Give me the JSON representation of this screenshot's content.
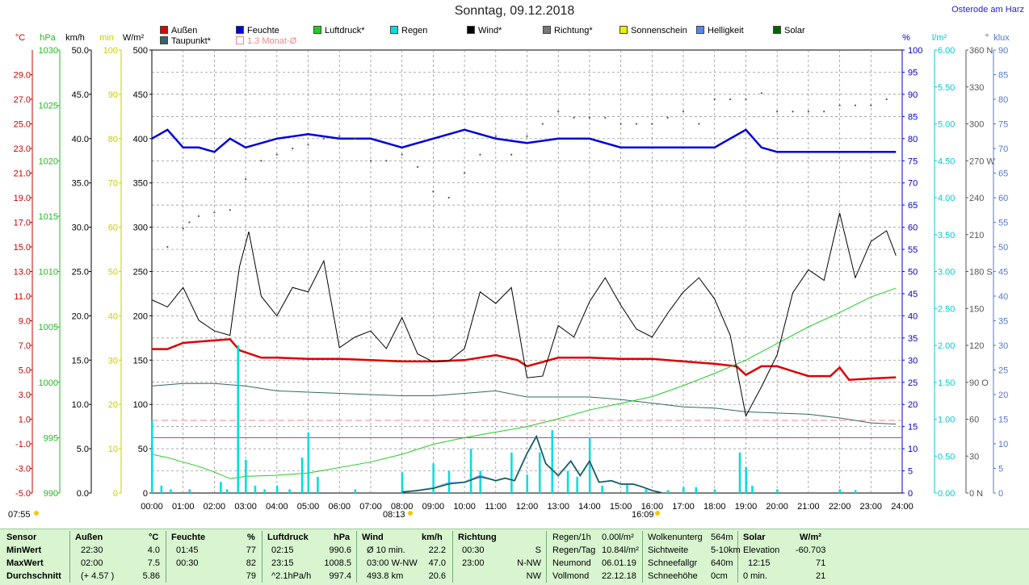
{
  "title": "Sonntag, 09.12.2018",
  "site": "Osterode am Harz",
  "colors": {
    "aussen": "#dd0000",
    "feuchte": "#0000dd",
    "luftdruck": "#22cc22",
    "regen": "#00dddd",
    "wind": "#000000",
    "richtung": "#555555",
    "taupunkt": "#336666",
    "monat": "#ee8888",
    "sonne": "#dddd00",
    "hell": "#5588ee",
    "solar": "#006600"
  },
  "legend": [
    {
      "label": "Außen",
      "color": "#dd0000"
    },
    {
      "label": "Taupunkt*",
      "color": "#336666"
    },
    {
      "label": "Feuchte",
      "color": "#0000dd"
    },
    {
      "label": "1.3 Monat-Ø",
      "color": "#ffffff"
    },
    {
      "label": "Luftdruck*",
      "color": "#22cc22"
    },
    {
      "label": "Regen",
      "color": "#00dddd"
    },
    {
      "label": "Wind*",
      "color": "#000000"
    },
    {
      "label": "Richtung*",
      "color": "#777777"
    },
    {
      "label": "Sonnenschein",
      "color": "#eeee00"
    },
    {
      "label": "Helligkeit",
      "color": "#5588ee"
    },
    {
      "label": "Solar",
      "color": "#006600"
    }
  ],
  "units_left": [
    "°C",
    "hPa",
    "km/h",
    "min",
    "W/m²"
  ],
  "units_right": [
    "%",
    "l/m²",
    "°",
    "klux"
  ],
  "sun": {
    "sunrise": "07:55",
    "transit": "08:13",
    "sunset": "16:09"
  },
  "chart_data": {
    "type": "line",
    "x_labels": [
      "00:00",
      "01:00",
      "02:00",
      "03:00",
      "04:00",
      "05:00",
      "06:00",
      "07:00",
      "08:00",
      "09:00",
      "10:00",
      "11:00",
      "12:00",
      "13:00",
      "14:00",
      "15:00",
      "16:00",
      "17:00",
      "18:00",
      "19:00",
      "20:00",
      "21:00",
      "22:00",
      "23:00",
      "24:00"
    ],
    "axes": {
      "temp": {
        "label": "°C",
        "min": -5,
        "max": 31,
        "ticks": [
          "29.0",
          "27.0",
          "25.0",
          "23.0",
          "21.0",
          "19.0",
          "17.0",
          "15.0",
          "13.0",
          "11.0",
          "9.0",
          "7.0",
          "5.0",
          "3.0",
          "1.0",
          "-1.0",
          "-3.0",
          "-5.0"
        ]
      },
      "hpa": {
        "label": "hPa",
        "min": 990,
        "max": 1030,
        "ticks": [
          "1030",
          "1025",
          "1020",
          "1015",
          "1010",
          "1005",
          "1000",
          "995",
          "990"
        ]
      },
      "kmh": {
        "label": "km/h",
        "min": 0,
        "max": 50,
        "ticks": [
          "50.0",
          "45.0",
          "40.0",
          "35.0",
          "30.0",
          "25.0",
          "20.0",
          "15.0",
          "10.0",
          "5.0",
          "0.0"
        ]
      },
      "min": {
        "label": "min",
        "min": 0,
        "max": 100,
        "ticks": [
          "100",
          "90",
          "80",
          "70",
          "60",
          "50",
          "40",
          "30",
          "20",
          "10",
          "0"
        ]
      },
      "wm2": {
        "label": "W/m²",
        "min": 0,
        "max": 500,
        "ticks": [
          "500",
          "450",
          "400",
          "350",
          "300",
          "250",
          "200",
          "150",
          "100",
          "50",
          "0"
        ]
      },
      "pct": {
        "label": "%",
        "min": 0,
        "max": 100,
        "ticks": [
          "100",
          "95",
          "90",
          "85",
          "80",
          "75",
          "70",
          "65",
          "60",
          "55",
          "50",
          "45",
          "40",
          "35",
          "30",
          "25",
          "20",
          "15",
          "10",
          "5",
          "0"
        ]
      },
      "lm2": {
        "label": "l/m²",
        "min": 0,
        "max": 6,
        "ticks": [
          "6.00",
          "5.50",
          "5.00",
          "4.50",
          "4.00",
          "3.50",
          "3.00",
          "2.50",
          "2.00",
          "1.50",
          "1.00",
          "0.50",
          "0.00"
        ]
      },
      "deg": {
        "label": "°",
        "min": 0,
        "max": 360,
        "ticks": [
          "360 N",
          "330",
          "300",
          "270 W",
          "240",
          "210",
          "180 S",
          "150",
          "120",
          "90 O",
          "60",
          "30",
          "0 N"
        ]
      },
      "klux": {
        "label": "klux",
        "min": 0,
        "max": 90,
        "ticks": [
          "90",
          "85",
          "80",
          "75",
          "70",
          "65",
          "60",
          "55",
          "50",
          "45",
          "40",
          "35",
          "30",
          "25",
          "20",
          "15",
          "10",
          "5",
          "0"
        ]
      }
    },
    "series": [
      {
        "name": "Außen",
        "axis": "temp",
        "x": [
          0,
          0.5,
          1,
          1.5,
          2,
          2.5,
          2.8,
          3.5,
          4,
          5,
          6,
          7,
          8,
          9,
          10,
          11,
          11.7,
          12,
          13,
          14,
          15,
          16,
          17,
          18,
          18.7,
          19,
          19.5,
          20,
          20.5,
          21,
          21.7,
          22,
          22.3,
          23,
          23.8
        ],
        "y": [
          6.7,
          6.7,
          7.2,
          7.3,
          7.4,
          7.5,
          6.6,
          6.0,
          6.0,
          5.9,
          5.9,
          5.8,
          5.7,
          5.7,
          5.8,
          6.2,
          5.8,
          5.3,
          6.0,
          6.0,
          5.9,
          5.9,
          5.7,
          5.5,
          5.3,
          4.6,
          5.3,
          5.3,
          4.9,
          4.5,
          4.5,
          5.2,
          4.2,
          4.3,
          4.4
        ]
      },
      {
        "name": "Taupunkt*",
        "axis": "temp",
        "x": [
          0,
          1,
          2,
          3,
          4,
          5,
          6,
          7,
          8,
          9,
          10,
          11,
          12,
          13,
          14,
          15,
          16,
          17,
          18,
          19,
          20,
          21,
          22,
          23,
          23.8
        ],
        "y": [
          3.7,
          3.9,
          3.9,
          3.7,
          3.3,
          3.2,
          3.1,
          3.0,
          2.9,
          2.9,
          3.1,
          3.3,
          2.8,
          2.8,
          2.8,
          2.6,
          2.3,
          2.0,
          1.9,
          1.6,
          1.5,
          1.4,
          1.1,
          0.7,
          0.6
        ]
      },
      {
        "name": "Feuchte",
        "axis": "pct",
        "x": [
          0,
          0.5,
          1,
          1.5,
          2,
          2.5,
          3,
          4,
          5,
          6,
          7,
          8,
          9,
          10,
          11,
          12,
          13,
          14,
          15,
          16,
          17,
          18,
          19,
          19.5,
          20,
          21,
          22,
          23,
          23.8
        ],
        "y": [
          80,
          82,
          78,
          78,
          77,
          80,
          78,
          80,
          81,
          80,
          80,
          78,
          80,
          82,
          80,
          79,
          80,
          80,
          78,
          78,
          78,
          78,
          82,
          78,
          77,
          77,
          77,
          77,
          77
        ]
      },
      {
        "name": "Luftdruck*",
        "axis": "hpa",
        "x": [
          0,
          0.5,
          1,
          1.5,
          2,
          2.5,
          3,
          4,
          5,
          6,
          7,
          8,
          9,
          10,
          11,
          12,
          13,
          14,
          15,
          16,
          17,
          18,
          19,
          20,
          21,
          22,
          23,
          23.8
        ],
        "y": [
          993.5,
          993.2,
          992.8,
          992.4,
          991.9,
          991.3,
          991.5,
          991.6,
          991.8,
          992.3,
          992.8,
          993.5,
          994.4,
          995.0,
          995.5,
          996.0,
          996.7,
          997.5,
          998.1,
          998.7,
          999.7,
          1000.8,
          1002.0,
          1003.5,
          1005.0,
          1006.3,
          1007.7,
          1008.5
        ]
      },
      {
        "name": "Wind*",
        "axis": "kmh",
        "x": [
          0,
          0.5,
          1,
          1.5,
          2,
          2.5,
          2.8,
          3.1,
          3.5,
          4,
          4.5,
          5,
          5.5,
          6,
          6.5,
          7,
          7.5,
          8,
          8.5,
          9,
          9.5,
          10,
          10.5,
          11,
          11.5,
          12,
          12.5,
          13,
          13.5,
          14,
          14.5,
          15,
          15.5,
          16,
          16.5,
          17,
          17.5,
          18,
          18.5,
          19,
          19.5,
          20,
          20.5,
          21,
          21.5,
          22,
          22.5,
          23,
          23.5,
          23.8
        ],
        "y": [
          21.8,
          21.0,
          23.2,
          19.5,
          18.3,
          17.8,
          25.5,
          29.5,
          22.2,
          20.0,
          23.2,
          22.7,
          26.2,
          16.4,
          17.6,
          18.3,
          16.3,
          19.8,
          15.7,
          14.8,
          14.9,
          16.3,
          22.7,
          21.4,
          23.2,
          13.0,
          13.2,
          18.9,
          17.6,
          21.6,
          24.3,
          21.2,
          18.5,
          17.6,
          20.3,
          22.7,
          24.3,
          21.9,
          17.8,
          8.7,
          12.0,
          15.6,
          22.6,
          25.2,
          24.0,
          31.6,
          24.3,
          28.4,
          29.6,
          26.8
        ]
      },
      {
        "name": "Regen",
        "axis": "lm2",
        "x": [
          0,
          0.3,
          0.6,
          1.2,
          2.2,
          2.4,
          2.75,
          3.0,
          3.3,
          3.6,
          4.0,
          4.4,
          4.8,
          5.0,
          5.3,
          6.5,
          8.0,
          9.0,
          9.5,
          10.2,
          10.5,
          11.5,
          12.0,
          12.4,
          12.8,
          13.3,
          13.6,
          14.0,
          14.4,
          15.2,
          15.8,
          16.5,
          17.0,
          17.4,
          18.0,
          18.8,
          19.0,
          19.2,
          20.0,
          22.0,
          22.5
        ],
        "y": [
          0.98,
          0.1,
          0.05,
          0.05,
          0.15,
          0.05,
          2.0,
          0.45,
          0.1,
          0.05,
          0.1,
          0.05,
          0.48,
          0.82,
          0.22,
          0.05,
          0.28,
          0.4,
          0.3,
          0.6,
          0.3,
          0.55,
          0.25,
          0.55,
          0.85,
          0.3,
          0.22,
          0.75,
          0.1,
          0.12,
          0.05,
          0.04,
          0.08,
          0.08,
          0.05,
          0.55,
          0.35,
          0.1,
          0.05,
          0.05,
          0.04
        ]
      },
      {
        "name": "Richtung*",
        "axis": "deg",
        "x": [
          0.5,
          1,
          1.2,
          1.5,
          2,
          2.5,
          3,
          3.5,
          4,
          4.5,
          5,
          5.5,
          6,
          6.5,
          7,
          7.5,
          8,
          8.5,
          9,
          9.5,
          10,
          10.5,
          11,
          11.5,
          12,
          12.5,
          13,
          13.5,
          14,
          14.5,
          15,
          15.5,
          16,
          16.5,
          17,
          17.5,
          18,
          18.5,
          19,
          19.5,
          20,
          20.5,
          21,
          21.5,
          22,
          22.5,
          23,
          23.5
        ],
        "y": [
          200,
          215,
          220,
          225,
          228,
          230,
          255,
          270,
          275,
          280,
          283,
          288,
          290,
          288,
          270,
          270,
          275,
          265,
          245,
          240,
          260,
          275,
          290,
          275,
          290,
          300,
          310,
          305,
          305,
          305,
          300,
          300,
          300,
          305,
          310,
          300,
          320,
          320,
          320,
          325,
          310,
          310,
          310,
          310,
          315,
          315,
          315,
          320
        ]
      },
      {
        "name": "Helligkeit",
        "axis": "klux",
        "x": [
          8.0,
          8.5,
          9.0,
          9.5,
          10.0,
          10.5,
          11.0,
          11.3,
          11.6,
          12.0,
          12.3,
          12.6,
          13.0,
          13.4,
          13.7,
          14.0,
          14.3,
          14.7,
          15.0,
          15.4,
          15.7,
          16.0,
          16.3
        ],
        "y": [
          0.2,
          0.5,
          1.0,
          2.0,
          2.2,
          3.5,
          2.5,
          3.0,
          2.5,
          8.0,
          11.5,
          6.0,
          3.5,
          6.5,
          3.5,
          6.5,
          2.2,
          2.5,
          1.8,
          1.8,
          1.2,
          0.5,
          0.1
        ]
      },
      {
        "name": "Solar",
        "axis": "wm2",
        "x": [
          8.0,
          8.5,
          9.0,
          9.5,
          10.0,
          10.5,
          11.0,
          11.3,
          11.6,
          12.0,
          12.3,
          12.6,
          13.0,
          13.4,
          13.7,
          14.0,
          14.3,
          14.7,
          15.0,
          15.4,
          15.7,
          16.0,
          16.3
        ],
        "y": [
          1,
          3,
          5,
          10,
          12,
          18,
          14,
          17,
          14,
          45,
          64,
          33,
          20,
          36,
          20,
          36,
          12,
          14,
          10,
          10,
          7,
          3,
          0
        ]
      }
    ],
    "reference_lines": [
      {
        "name": "1.3 Monat-Ø",
        "axis": "temp",
        "y": 0.9,
        "color": "#ee8888"
      },
      {
        "name": "1.3 Monat-Ø",
        "axis": "temp",
        "y": -0.5,
        "color": "#aa33aa"
      }
    ]
  },
  "stats": {
    "headers": {
      "sensor": "Sensor",
      "aussen": "Außen",
      "aussen_unit": "°C",
      "feuchte": "Feuchte",
      "feuchte_unit": "%",
      "luftdruck": "Luftdruck",
      "luftdruck_unit": "hPa",
      "wind": "Wind",
      "wind_unit": "km/h",
      "richtung": "Richtung"
    },
    "rows": [
      {
        "label": "MinWert",
        "aussen_t": "22:30",
        "aussen_v": "4.0",
        "feuchte_t": "01:45",
        "feuchte_v": "77",
        "druck_t": "02:15",
        "druck_v": "990.6",
        "wind_t": "Ø 10 min.",
        "wind_v": "22.2",
        "richt_t": "00:30",
        "richt_v": "S"
      },
      {
        "label": "MaxWert",
        "aussen_t": "02:00",
        "aussen_v": "7.5",
        "feuchte_t": "00:30",
        "feuchte_v": "82",
        "druck_t": "23:15",
        "druck_v": "1008.5",
        "wind_t": "03:00    W-NW",
        "wind_v": "47.0",
        "richt_t": "23:00",
        "richt_v": "N-NW"
      },
      {
        "label": "Durchschnitt",
        "aussen_t": "(+ 4.57 )",
        "aussen_v": "5.86",
        "feuchte_t": "",
        "feuchte_v": "79",
        "druck_t": "^2.1hPa/h",
        "druck_v": "997.4",
        "wind_t": "493.8 km",
        "wind_v": "20.6",
        "richt_t": "",
        "richt_v": "NW"
      }
    ],
    "extra": [
      {
        "a": "Regen/1h",
        "b": "0.00l/m²",
        "c": "Wolkenunterg",
        "d": "564m"
      },
      {
        "a": "Regen/Tag",
        "b": "10.84l/m²",
        "c": "Sichtweite",
        "d": "5-10km"
      },
      {
        "a": "Neumond",
        "b": "06.01.19",
        "c": "Schneefallgr",
        "d": "640m"
      },
      {
        "a": "Vollmond",
        "b": "22.12.18",
        "c": "Schneehöhe",
        "d": "0cm"
      }
    ],
    "solar": {
      "title": "Solar",
      "unit": "W/m²",
      "r1a": "Elevation",
      "r1b": "-60.703",
      "r2a": "12:15",
      "r2b": "71",
      "r3a": "0 min.",
      "r3b": "21"
    }
  }
}
